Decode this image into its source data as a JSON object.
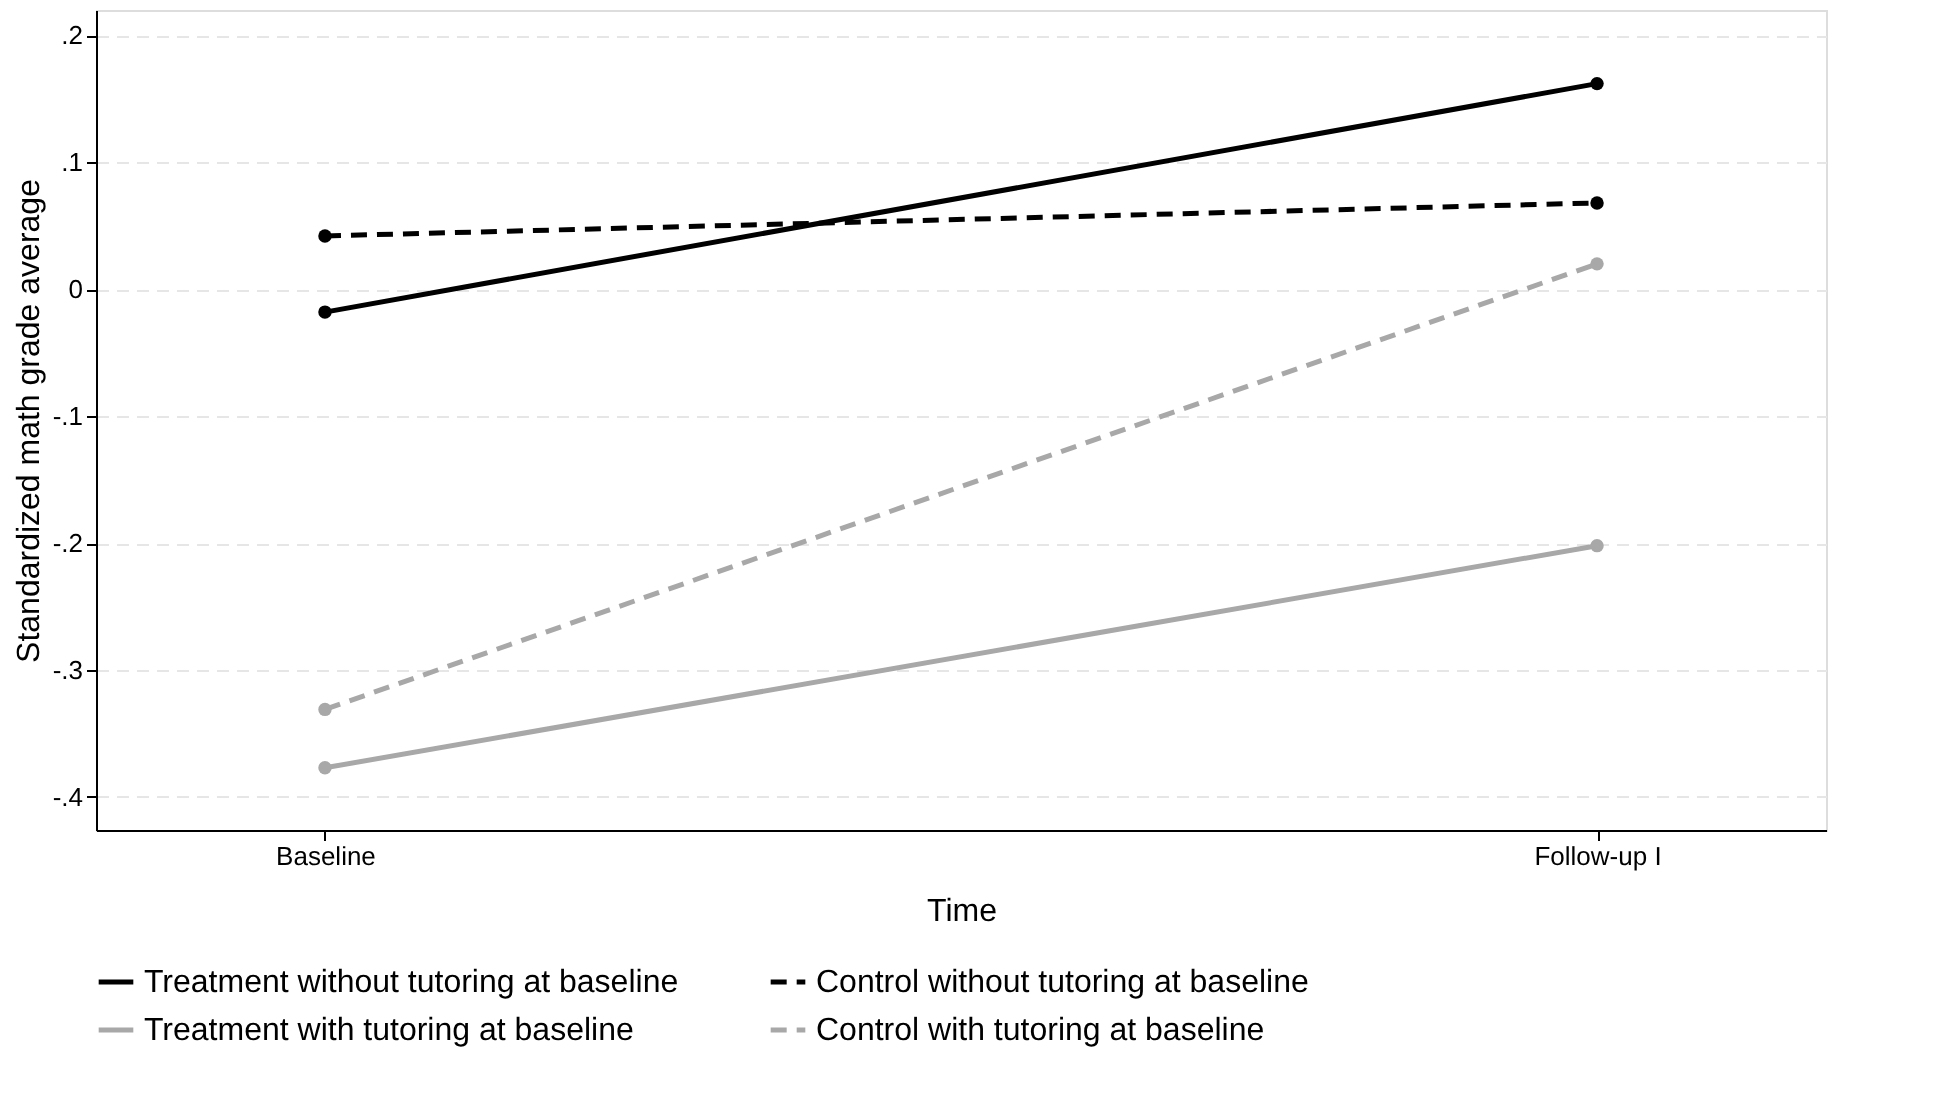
{
  "chart_data": {
    "type": "line",
    "xlabel": "Time",
    "ylabel": "Standardized math grade average",
    "categories": [
      "Baseline",
      "Follow-up I"
    ],
    "series": [
      {
        "name": "Treatment without tutoring at baseline",
        "color": "#000000",
        "line_style": "solid",
        "values": [
          -0.018,
          0.162
        ]
      },
      {
        "name": "Control without tutoring at baseline",
        "color": "#000000",
        "line_style": "dashed",
        "values": [
          0.042,
          0.068
        ]
      },
      {
        "name": "Treatment with tutoring at baseline",
        "color": "#a8a8a8",
        "line_style": "solid",
        "values": [
          -0.377,
          -0.202
        ]
      },
      {
        "name": "Control with tutoring at baseline",
        "color": "#a8a8a8",
        "line_style": "dashed",
        "values": [
          -0.331,
          0.02
        ]
      }
    ],
    "ylim": [
      -0.426,
      0.22
    ],
    "yticks": [
      {
        "value": -0.4,
        "label": "-.4"
      },
      {
        "value": -0.3,
        "label": "-.3"
      },
      {
        "value": -0.2,
        "label": "-.2"
      },
      {
        "value": -0.1,
        "label": "-.1"
      },
      0,
      {
        "value": 0.1,
        "label": ".1"
      },
      {
        "value": 0.2,
        "label": ".2"
      }
    ],
    "grid": "y",
    "legend": "bottom",
    "marker": "circle"
  }
}
